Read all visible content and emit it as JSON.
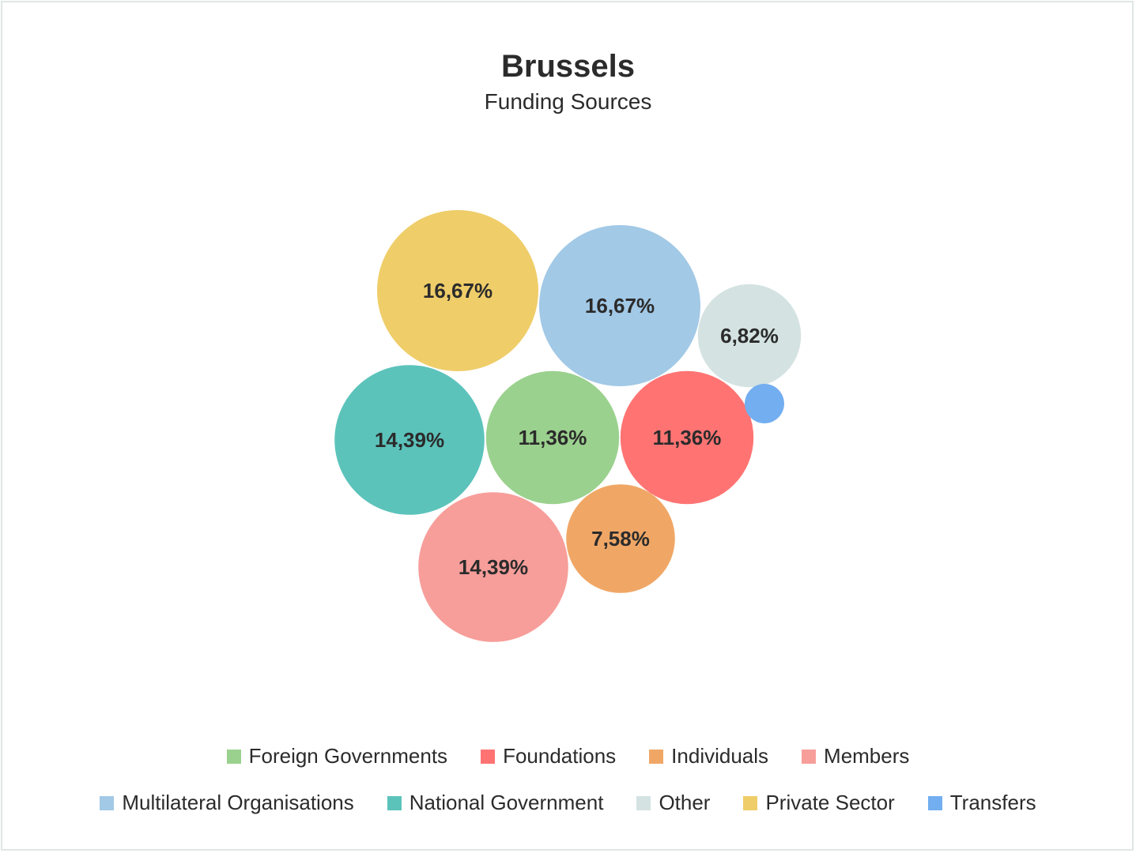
{
  "chart_data": {
    "type": "bubble",
    "title": "Brussels",
    "subtitle": "Funding Sources",
    "series": [
      {
        "name": "Foreign Governments",
        "value": 11.36,
        "label": "11,36%",
        "color": "#9bd18e"
      },
      {
        "name": "Foundations",
        "value": 11.36,
        "label": "11,36%",
        "color": "#ff7473"
      },
      {
        "name": "Individuals",
        "value": 7.58,
        "label": "7,58%",
        "color": "#f0a766"
      },
      {
        "name": "Members",
        "value": 14.39,
        "label": "14,39%",
        "color": "#f79e9a"
      },
      {
        "name": "Multilateral Organisations",
        "value": 16.67,
        "label": "16,67%",
        "color": "#a2c9e6"
      },
      {
        "name": "National Government",
        "value": 14.39,
        "label": "14,39%",
        "color": "#5cc3bb"
      },
      {
        "name": "Other",
        "value": 6.82,
        "label": "6,82%",
        "color": "#d4e2e2"
      },
      {
        "name": "Private Sector",
        "value": 16.67,
        "label": "16,67%",
        "color": "#efcd69"
      },
      {
        "name": "Transfers",
        "value": 1.0,
        "label": "",
        "color": "#72aef0"
      }
    ],
    "legend_position": "bottom"
  }
}
